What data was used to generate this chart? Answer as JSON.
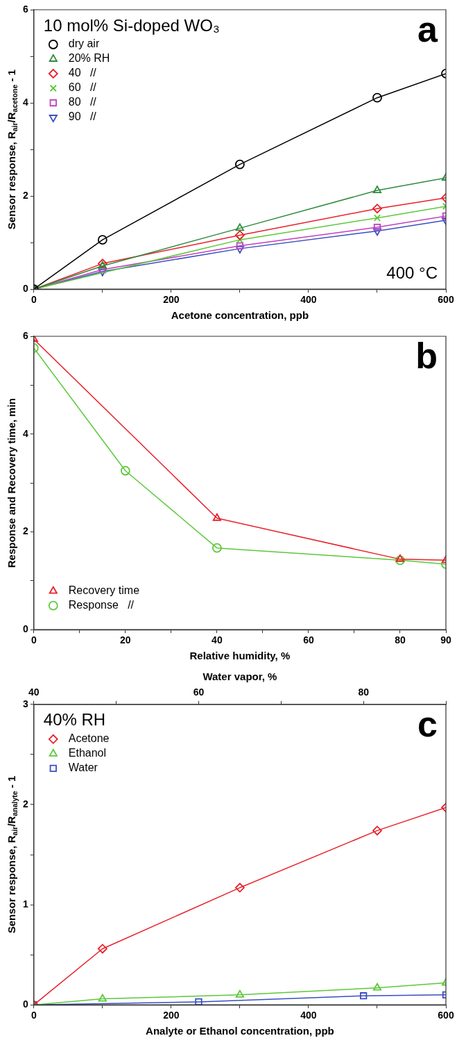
{
  "chart_data": [
    {
      "type": "line",
      "title": "a",
      "xlabel": "Acetone concentration, ppb",
      "ylabel": "Sensor response, R$_{air}$/R$_{acetone}$ - 1",
      "annotations": [
        "10 mol% Si-doped WO₃",
        "400 °C"
      ],
      "x": [
        0,
        100,
        300,
        500,
        600
      ],
      "series": [
        {
          "name": "dry air",
          "color": "#000000",
          "marker": "circle",
          "values": [
            0,
            1.06,
            2.68,
            4.11,
            4.63
          ]
        },
        {
          "name": "20% RH",
          "color": "#2e8b3a",
          "marker": "triangle",
          "values": [
            0,
            0.5,
            1.31,
            2.12,
            2.39
          ]
        },
        {
          "name": "40   //",
          "color": "#e8202a",
          "marker": "diamond",
          "values": [
            0,
            0.55,
            1.16,
            1.73,
            1.96
          ]
        },
        {
          "name": "60   //",
          "color": "#5cc83a",
          "marker": "cross",
          "values": [
            0,
            null,
            1.06,
            1.53,
            1.78
          ]
        },
        {
          "name": "80   //",
          "color": "#c040c0",
          "marker": "square",
          "values": [
            0,
            0.42,
            0.93,
            1.33,
            1.57
          ]
        },
        {
          "name": "90   //",
          "color": "#3a4ec0",
          "marker": "triangle-down",
          "values": [
            0,
            0.38,
            0.87,
            1.25,
            1.48
          ]
        }
      ],
      "xlim": [
        0,
        600
      ],
      "xticks": [
        0,
        {
          "value": 100,
          "label": null
        },
        200,
        {
          "value": 300,
          "label": null
        },
        400,
        {
          "value": 500,
          "label": null
        },
        600
      ],
      "ylim": [
        0,
        6
      ],
      "yticks": [
        0,
        {
          "value": 1,
          "label": null
        },
        2,
        {
          "value": 3,
          "label": null
        },
        4,
        {
          "value": 5,
          "label": null
        },
        6
      ],
      "grid": false,
      "legend": "top left",
      "line_style": "solid"
    },
    {
      "type": "line",
      "title": "b",
      "xlabel": "Relative humidity, %",
      "ylabel": "Response and Recovery time, min",
      "series": [
        {
          "name": "Recovery time",
          "color": "#e8202a",
          "marker": "triangle",
          "x": [
            0,
            40,
            80,
            90
          ],
          "values": [
            5.94,
            2.28,
            1.44,
            1.42
          ]
        },
        {
          "name": "Response   //",
          "color": "#5cc83a",
          "marker": "circle",
          "x": [
            0,
            20,
            40,
            80,
            90
          ],
          "values": [
            5.76,
            3.25,
            1.67,
            1.42,
            1.34
          ]
        }
      ],
      "xlim": [
        0,
        90
      ],
      "xticks": [
        0,
        {
          "value": 10,
          "label": null
        },
        20,
        {
          "value": 30,
          "label": null
        },
        40,
        {
          "value": 50,
          "label": null
        },
        60,
        {
          "value": 70,
          "label": null
        },
        80,
        90
      ],
      "ylim": [
        0,
        6
      ],
      "yticks": [
        0,
        {
          "value": 1,
          "label": null
        },
        2,
        {
          "value": 3,
          "label": null
        },
        4,
        {
          "value": 5,
          "label": null
        },
        6
      ],
      "grid": false,
      "legend": "bottom left",
      "line_style": "solid"
    },
    {
      "type": "line",
      "title": "c",
      "xlabel": "Analyte or Ethanol concentration, ppb",
      "x2label": "Water vapor, %",
      "ylabel": "Sensor response, R$_{air}$/R$_{analyte}$ - 1",
      "annotations": [
        "40% RH"
      ],
      "series": [
        {
          "name": "Acetone",
          "color": "#e8202a",
          "marker": "diamond",
          "x": [
            0,
            100,
            300,
            500,
            600
          ],
          "values": [
            0,
            0.56,
            1.17,
            1.74,
            1.97
          ]
        },
        {
          "name": "Ethanol",
          "color": "#5cc83a",
          "marker": "triangle",
          "x": [
            0,
            100,
            300,
            500,
            600
          ],
          "values": [
            0,
            0.06,
            0.1,
            0.17,
            0.22
          ]
        },
        {
          "name": "Water",
          "color": "#3a4ec0",
          "marker": "square",
          "axis": "x2",
          "x": [
            40,
            60,
            80,
            90
          ],
          "values": [
            0,
            0.03,
            0.09,
            0.1
          ]
        }
      ],
      "xlim": [
        0,
        600
      ],
      "xticks": [
        0,
        {
          "value": 100,
          "label": null
        },
        200,
        {
          "value": 300,
          "label": null
        },
        400,
        {
          "value": 500,
          "label": null
        },
        600
      ],
      "x2lim": [
        40,
        90
      ],
      "x2ticks": [
        40,
        {
          "value": 50,
          "label": null
        },
        60,
        {
          "value": 70,
          "label": null
        },
        80,
        {
          "value": 90,
          "label": null
        }
      ],
      "ylim": [
        0,
        3
      ],
      "yticks": [
        0,
        {
          "value": 0.5,
          "label": null
        },
        1,
        {
          "value": 1.5,
          "label": null
        },
        2,
        {
          "value": 2.5,
          "label": null
        },
        3
      ],
      "grid": false,
      "legend": "top left",
      "line_style": "solid"
    }
  ]
}
